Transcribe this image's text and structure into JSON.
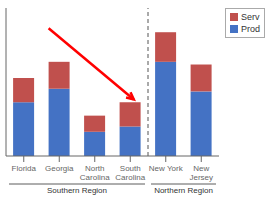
{
  "chart_data": {
    "type": "bar",
    "stacked": true,
    "categories": [
      "Florida",
      "Georgia",
      "North\nCarolina",
      "South\nCarolina",
      "New York",
      "New\nJersey"
    ],
    "series": [
      {
        "name": "Prod",
        "color": "#4472C4",
        "values": [
          40,
          50,
          18,
          22,
          70,
          48
        ]
      },
      {
        "name": "Serv",
        "color": "#C0504D",
        "values": [
          18,
          20,
          12,
          18,
          22,
          20
        ]
      }
    ],
    "ylim": [
      0,
      110
    ],
    "grid": false,
    "tick_labels": "x",
    "legend": "upper right",
    "annotations": [
      {
        "text": "Southern Region",
        "categories": [
          "Florida",
          "Georgia",
          "North\nCarolina",
          "South\nCarolina"
        ]
      },
      {
        "text": "Northern Region",
        "categories": [
          "New York",
          "New\nJersey"
        ]
      },
      {
        "arrow": {
          "x": [
            0.7,
            3.1
          ],
          "y": [
            95,
            42
          ]
        },
        "color": "red"
      }
    ]
  }
}
